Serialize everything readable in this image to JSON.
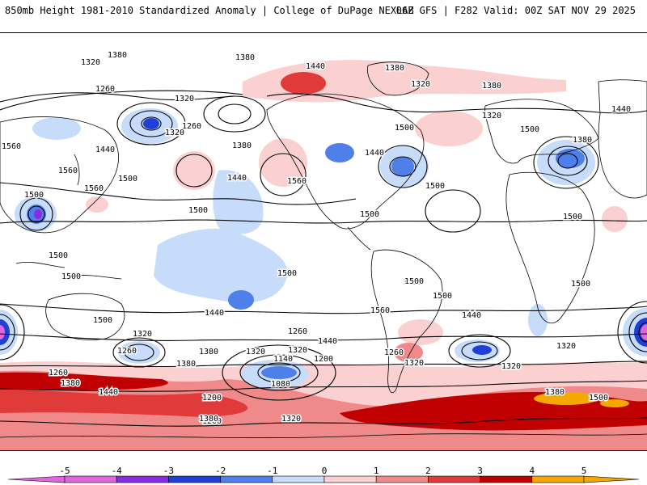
{
  "header": {
    "title_left": "850mb Height 1981-2010 Standardized Anomaly | College of DuPage NEXLAB",
    "title_right": "06Z GFS | F282 Valid: 00Z SAT NOV 29 2025"
  },
  "colors": {
    "m5": "#e066e0",
    "m4": "#8a2be2",
    "m3": "#1f3fd6",
    "m2": "#4f7fe8",
    "m1": "#c6dcfa",
    "p1": "#fbd0d0",
    "p2": "#f08a8a",
    "p3": "#e03a3a",
    "p4": "#c00000",
    "p5": "#f5a800",
    "contour": "#000000",
    "coast": "#000000"
  },
  "colorbar": {
    "labels": [
      "-5",
      "-4",
      "-3",
      "-2",
      "-1",
      "0",
      "1",
      "2",
      "3",
      "4",
      "5"
    ]
  },
  "height_labels": [
    "1380",
    "1320",
    "1260",
    "1320",
    "1380",
    "1440",
    "1380",
    "1320",
    "1320",
    "1380",
    "1500",
    "1500",
    "1440",
    "1380",
    "1560",
    "1260",
    "1380",
    "1500",
    "1560",
    "1320",
    "1440",
    "1500",
    "1560",
    "1440",
    "1560",
    "1500",
    "1560",
    "1440",
    "1500",
    "1500",
    "1500",
    "1500",
    "1500",
    "1500",
    "1500",
    "1500",
    "1560",
    "1440",
    "1500",
    "1440",
    "1320",
    "1260",
    "1380",
    "1320",
    "1260",
    "1140",
    "1200",
    "1080",
    "1380",
    "1320",
    "1260",
    "1200",
    "1260",
    "1320",
    "1380",
    "1260",
    "1320",
    "1380",
    "1440",
    "1440",
    "1500",
    "1380",
    "1320",
    "1500",
    "1500",
    "1320"
  ]
}
